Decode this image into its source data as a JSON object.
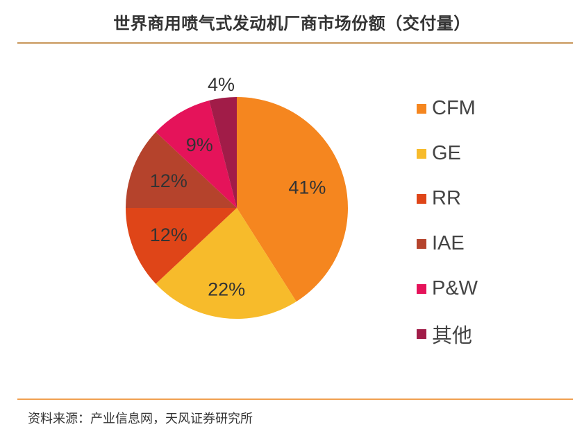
{
  "chart_data": {
    "type": "pie",
    "title": "世界商用喷气式发动机厂商市场份额（交付量）",
    "categories": [
      "CFM",
      "GE",
      "RR",
      "IAE",
      "P&W",
      "其他"
    ],
    "values": [
      41,
      22,
      12,
      12,
      9,
      4
    ],
    "labels": [
      "41%",
      "22%",
      "12%",
      "12%",
      "9%",
      "4%"
    ],
    "colors": [
      "#F5861F",
      "#F7BB2B",
      "#DF4518",
      "#B5432C",
      "#E5135A",
      "#A11C48"
    ],
    "start": "top",
    "direction": "clockwise",
    "legend": "right"
  },
  "source": "资料来源：产业信息网，天风证券研究所"
}
